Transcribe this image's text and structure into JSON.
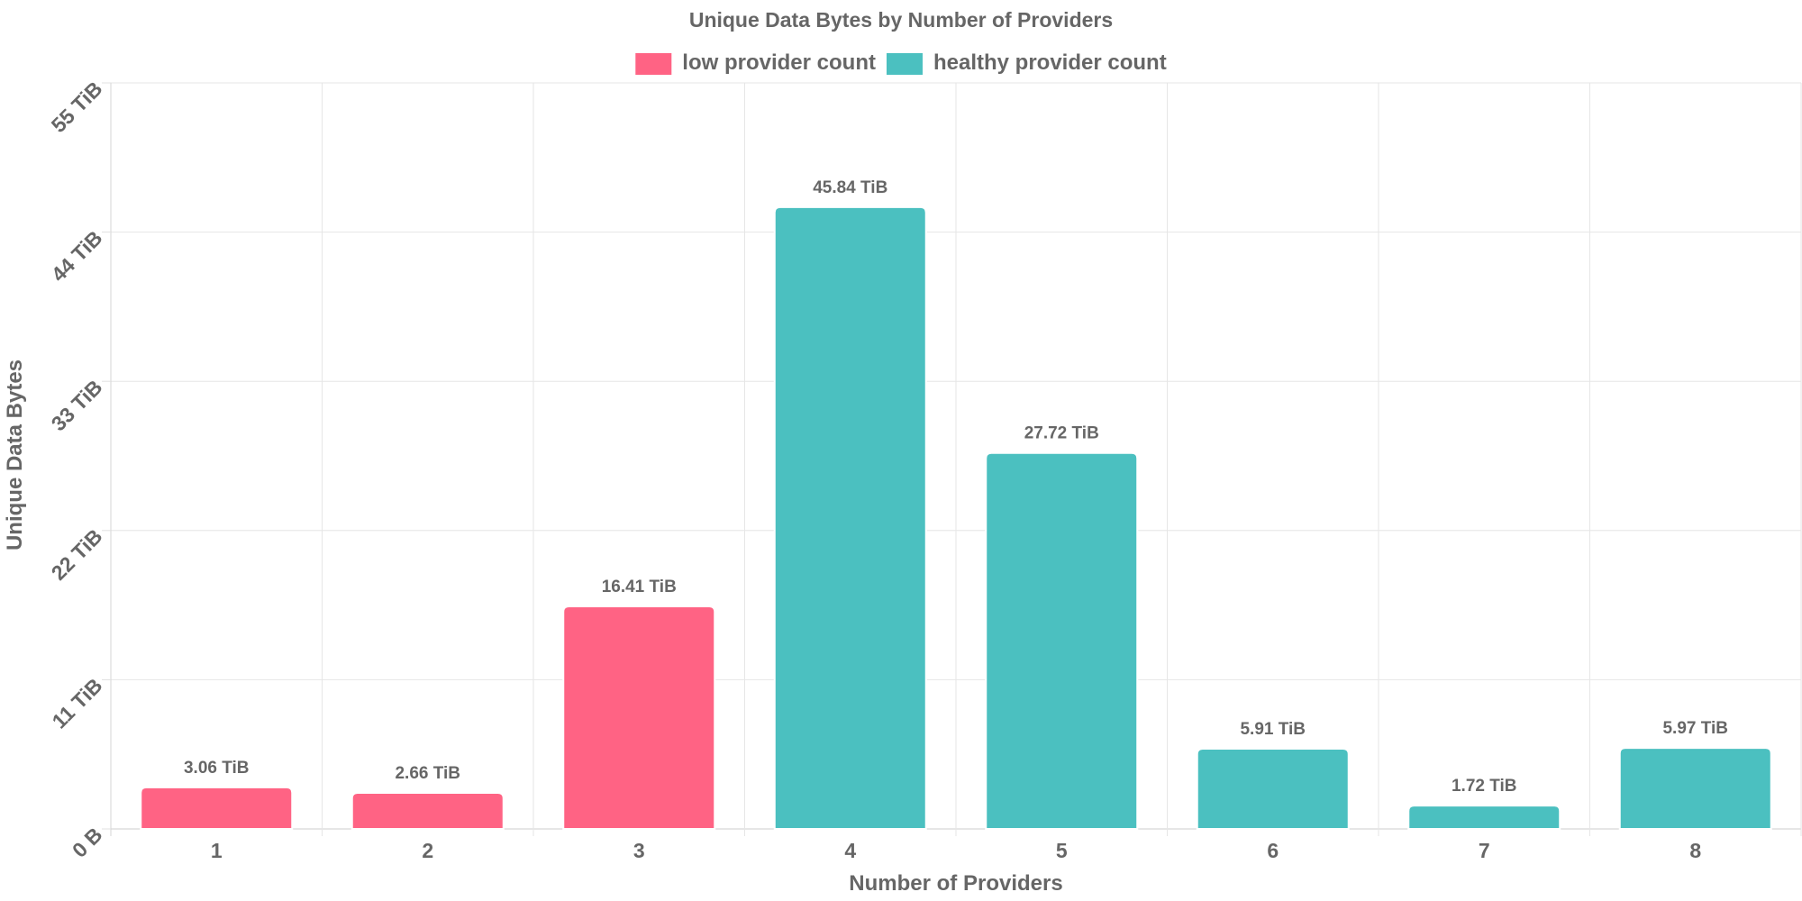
{
  "chart_data": {
    "type": "bar",
    "title": "Unique Data Bytes by Number of Providers",
    "xlabel": "Number of Providers",
    "ylabel": "Unique Data Bytes",
    "categories": [
      "1",
      "2",
      "3",
      "4",
      "5",
      "6",
      "7",
      "8"
    ],
    "values": [
      3.06,
      2.66,
      16.41,
      45.84,
      27.72,
      5.91,
      1.72,
      5.97
    ],
    "value_labels": [
      "3.06 TiB",
      "2.66 TiB",
      "16.41 TiB",
      "45.84 TiB",
      "27.72 TiB",
      "5.91 TiB",
      "1.72 TiB",
      "5.97 TiB"
    ],
    "value_series": [
      "low",
      "low",
      "low",
      "healthy",
      "healthy",
      "healthy",
      "healthy",
      "healthy"
    ],
    "series": [
      {
        "key": "low",
        "name": "low provider count",
        "color": "#ff6384"
      },
      {
        "key": "healthy",
        "name": "healthy provider count",
        "color": "#4bc0c0"
      }
    ],
    "ylim": [
      0,
      55
    ],
    "yticks": [
      0,
      11,
      22,
      33,
      44,
      55
    ],
    "ytick_labels": [
      "0 B",
      "11 TiB",
      "22 TiB",
      "33 TiB",
      "44 TiB",
      "55 TiB"
    ],
    "grid": true,
    "legend_position": "top-center",
    "unit": "TiB"
  }
}
